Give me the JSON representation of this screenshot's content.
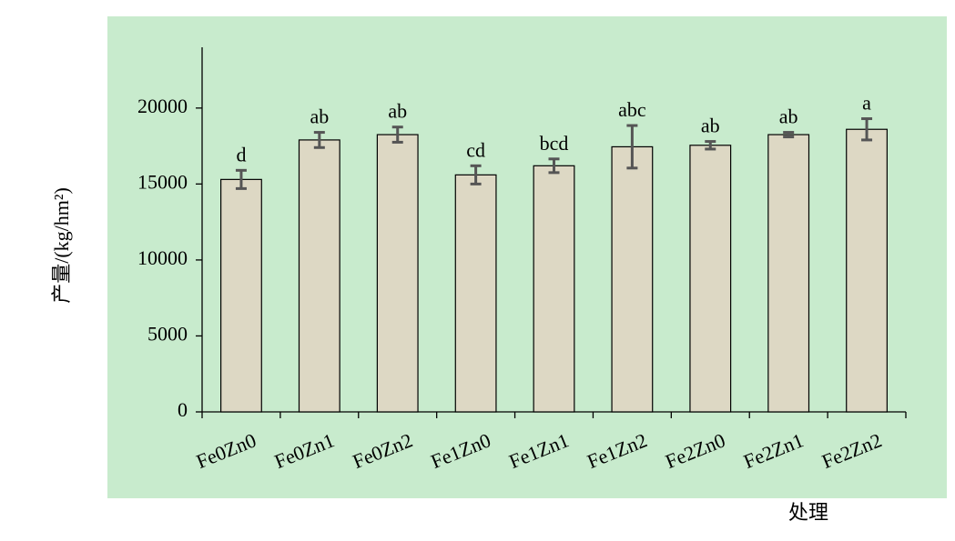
{
  "chart_data": {
    "type": "bar",
    "categories": [
      "Fe0Zn0",
      "Fe0Zn1",
      "Fe0Zn2",
      "Fe1Zn0",
      "Fe1Zn1",
      "Fe1Zn2",
      "Fe2Zn0",
      "Fe2Zn1",
      "Fe2Zn2"
    ],
    "values": [
      15300,
      17900,
      18250,
      15600,
      16200,
      17450,
      17550,
      18250,
      18600
    ],
    "errors": [
      600,
      500,
      500,
      600,
      450,
      1400,
      250,
      150,
      700
    ],
    "annotations": [
      "d",
      "ab",
      "ab",
      "cd",
      "bcd",
      "abc",
      "ab",
      "ab",
      "a"
    ],
    "color": "#ddd8c4",
    "y_label": "产量/(kg/hm²)",
    "x_label": "处理",
    "ylim": [
      0,
      24000
    ],
    "yticks": [
      0,
      5000,
      10000,
      15000,
      20000
    ]
  }
}
